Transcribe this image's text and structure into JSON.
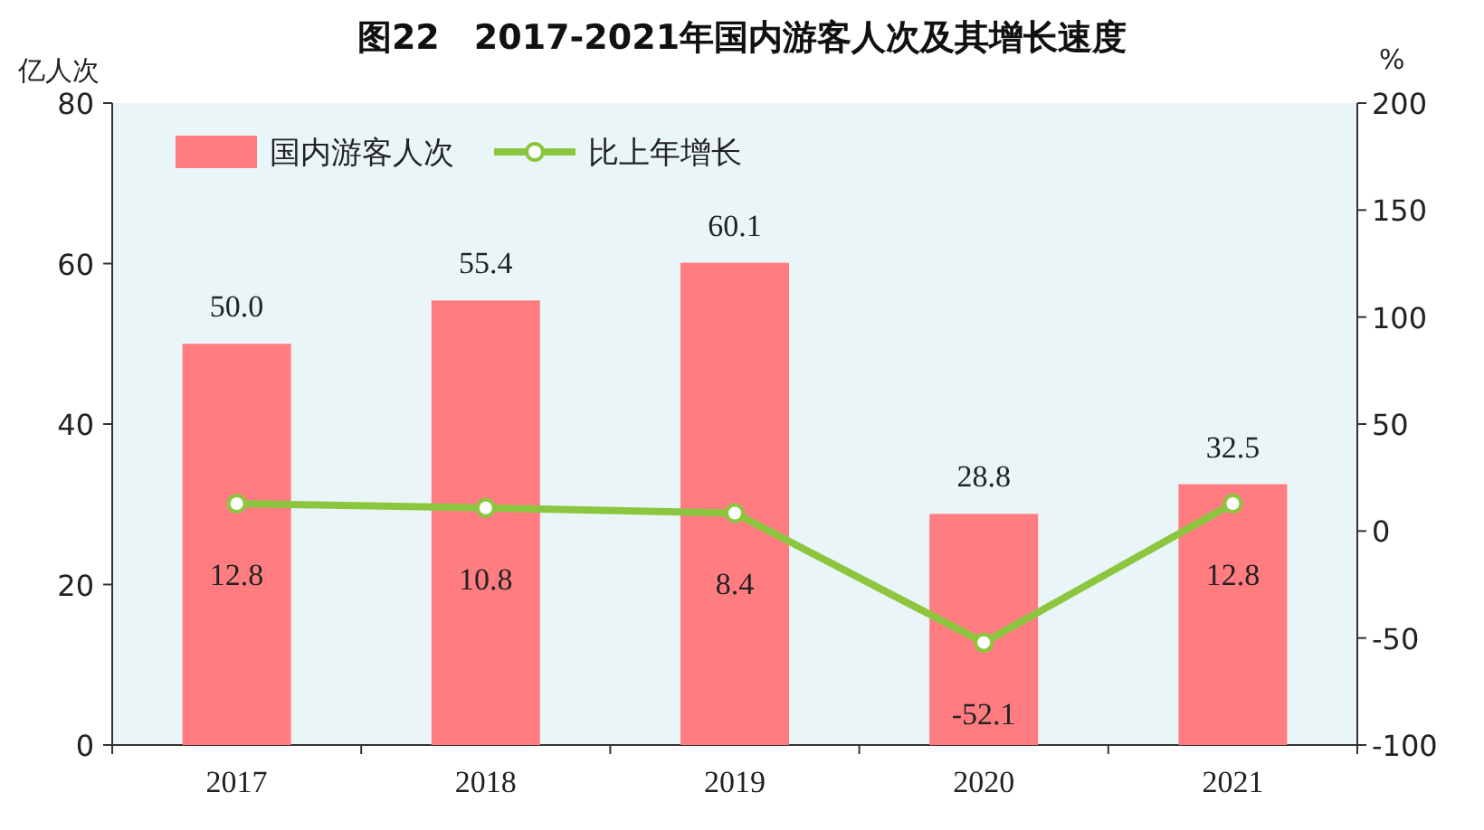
{
  "chart_data": {
    "type": "bar",
    "title": "图22　2017-2021年国内游客人次及其增长速度",
    "ylabel": "亿人次",
    "y2label": "%",
    "categories": [
      "2017",
      "2018",
      "2019",
      "2020",
      "2021"
    ],
    "series": [
      {
        "name": "国内游客人次",
        "color": "#ff7c80",
        "values": [
          50.0,
          55.4,
          60.1,
          28.8,
          32.5
        ],
        "value_labels": [
          "50.0",
          "55.4",
          "60.1",
          "28.8",
          "32.5"
        ]
      },
      {
        "name": "比上年增长",
        "type": "line",
        "axis": "y2",
        "color": "#8cc63f",
        "values": [
          12.8,
          10.8,
          8.4,
          -52.1,
          12.8
        ],
        "value_labels": [
          "12.8",
          "10.8",
          "8.4",
          "-52.1",
          "12.8"
        ]
      }
    ],
    "ylim": [
      0,
      80
    ],
    "yticks": [
      0,
      20,
      40,
      60,
      80
    ],
    "y2lim": [
      -100,
      200
    ],
    "y2ticks": [
      -100,
      -50,
      0,
      50,
      100,
      150,
      200
    ],
    "data_labels": true,
    "legend": "top left",
    "marker": "circle",
    "line_style": "solid",
    "grid": false
  }
}
